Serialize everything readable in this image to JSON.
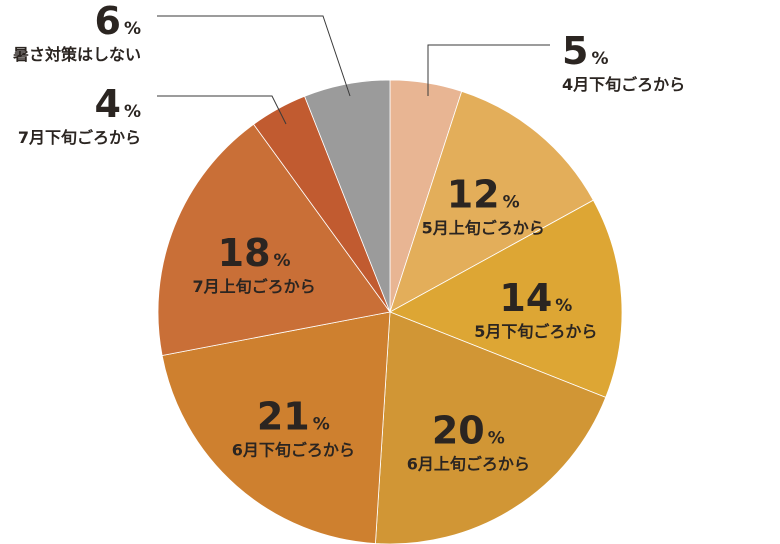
{
  "chart_data": {
    "type": "pie",
    "unit": "%",
    "start_angle_deg": 0,
    "direction": "clockwise",
    "slices": [
      {
        "label": "4月下旬ごろから",
        "value": 5,
        "color": "#e8b593"
      },
      {
        "label": "5月上旬ごろから",
        "value": 12,
        "color": "#e3ae5a"
      },
      {
        "label": "5月下旬ごろから",
        "value": 14,
        "color": "#dda634"
      },
      {
        "label": "6月上旬ごろから",
        "value": 20,
        "color": "#d19635"
      },
      {
        "label": "6月下旬ごろから",
        "value": 21,
        "color": "#ce802f"
      },
      {
        "label": "7月上旬ごろから",
        "value": 18,
        "color": "#c96f37"
      },
      {
        "label": "7月下旬ごろから",
        "value": 4,
        "color": "#c15b30"
      },
      {
        "label": "暑さ対策はしない",
        "value": 6,
        "color": "#9b9b9b"
      }
    ]
  }
}
